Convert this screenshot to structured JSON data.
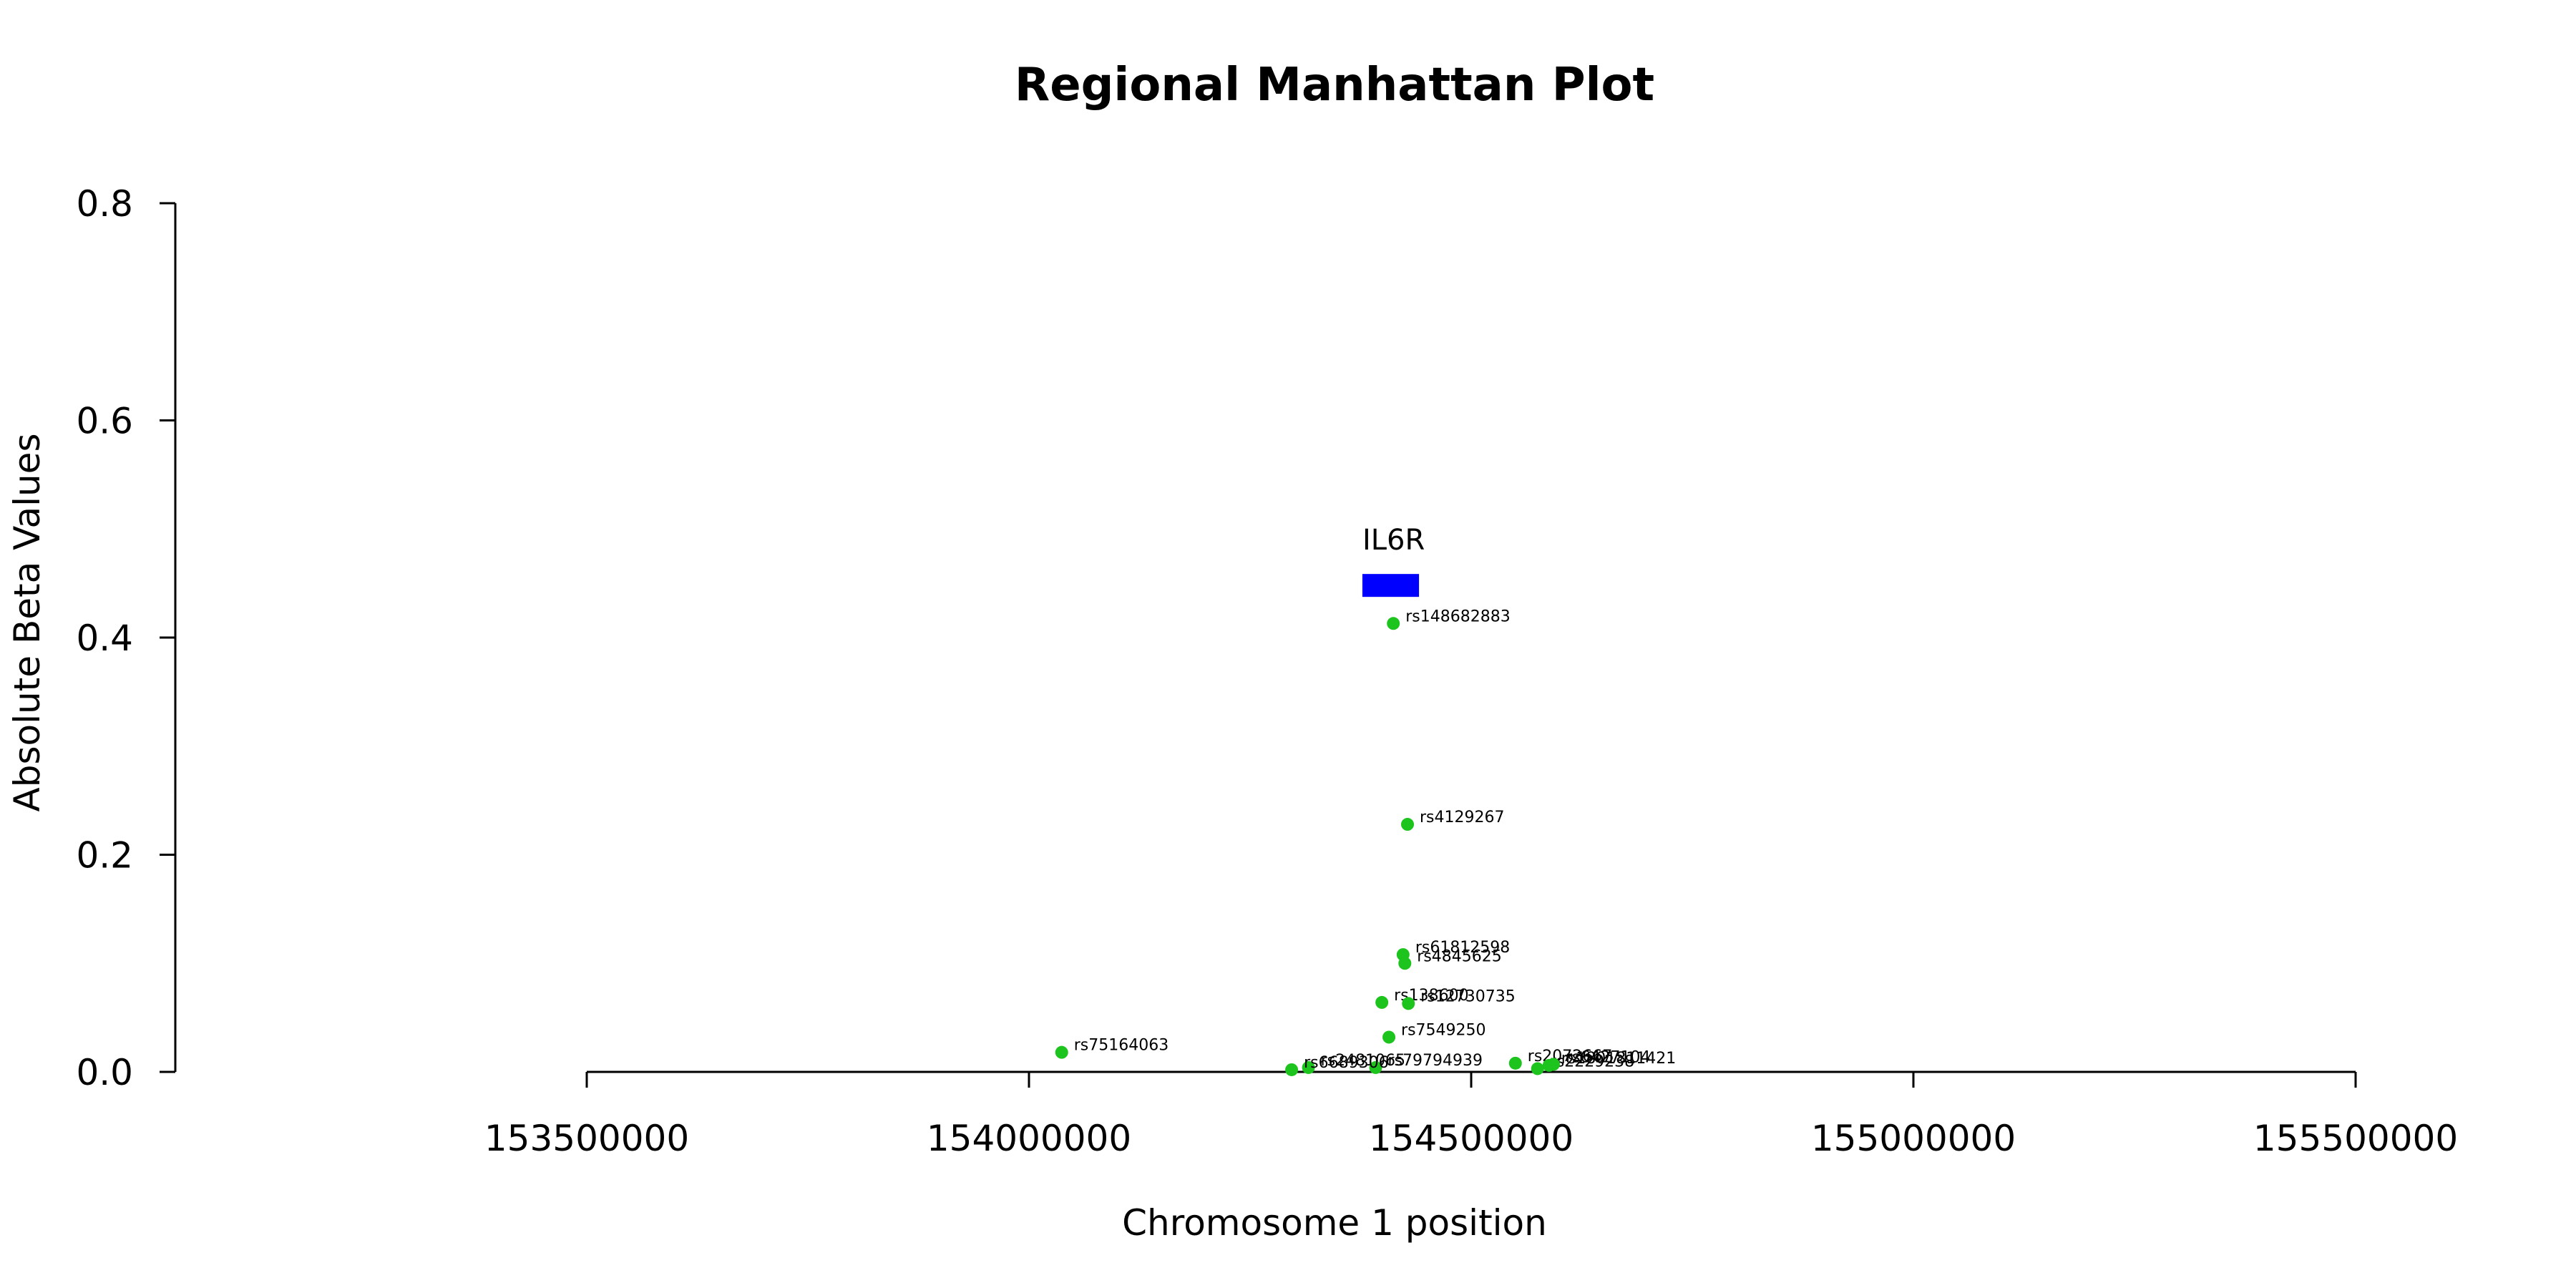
{
  "chart_data": {
    "type": "scatter",
    "title": "Regional Manhattan Plot",
    "xlabel": "Chromosome 1 position",
    "ylabel": "Absolute Beta Values",
    "xlim": [
      153500000,
      155500000
    ],
    "ylim": [
      0,
      0.8
    ],
    "x_ticks": [
      153500000,
      154000000,
      154500000,
      155000000,
      155500000
    ],
    "x_tick_labels": [
      "153500000",
      "154000000",
      "154500000",
      "155000000",
      "155500000"
    ],
    "y_ticks": [
      0,
      0.2,
      0.4,
      0.6,
      0.8
    ],
    "y_tick_labels": [
      "0.0",
      "0.2",
      "0.4",
      "0.6",
      "0.8"
    ],
    "grid": false,
    "point_color": "#1ec41e",
    "gene": {
      "name": "IL6R",
      "start": 154377000,
      "end": 154441000,
      "y": 0.448,
      "color": "#0000ff"
    },
    "points": [
      {
        "label": "rs148682883",
        "x": 154412000,
        "y": 0.413
      },
      {
        "label": "rs4129267",
        "x": 154428000,
        "y": 0.228
      },
      {
        "label": "rs61812598",
        "x": 154423000,
        "y": 0.108
      },
      {
        "label": "rs4845625",
        "x": 154425000,
        "y": 0.1
      },
      {
        "label": "rs138600",
        "x": 154399000,
        "y": 0.064
      },
      {
        "label": "rs12730735",
        "x": 154429000,
        "y": 0.063
      },
      {
        "label": "rs7549250",
        "x": 154407000,
        "y": 0.032
      },
      {
        "label": "rs75164063",
        "x": 154037000,
        "y": 0.018
      },
      {
        "label": "rs2481065",
        "x": 154316000,
        "y": 0.004
      },
      {
        "label": "rs79794939",
        "x": 154392000,
        "y": 0.004
      },
      {
        "label": "rs6689306",
        "x": 154297000,
        "y": 0.002
      },
      {
        "label": "rs2072667",
        "x": 154550000,
        "y": 0.008
      },
      {
        "label": "rs2229238",
        "x": 154575000,
        "y": 0.003
      },
      {
        "label": "rs1801811421",
        "x": 154588000,
        "y": 0.006
      },
      {
        "label": "rs6427104",
        "x": 154593000,
        "y": 0.007
      }
    ]
  }
}
